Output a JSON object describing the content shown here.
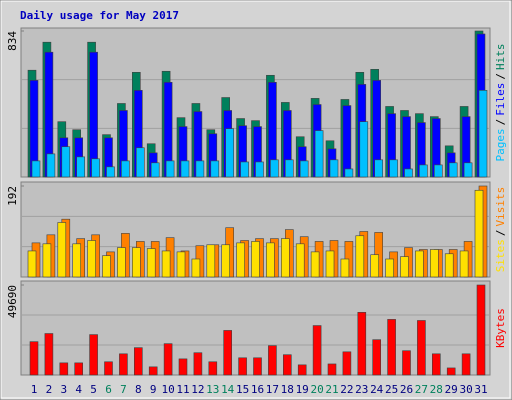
{
  "chart_data": [
    {
      "type": "bar",
      "title": "Daily usage for May 2017",
      "ylim": [
        0,
        834
      ],
      "yticks": [
        834
      ],
      "legend_separator": "/",
      "series": [
        {
          "name": "Hits",
          "color": "#00805c",
          "values": [
            610,
            770,
            316,
            270,
            770,
            242,
            420,
            598,
            190,
            604,
            339,
            420,
            270,
            454,
            334,
            322,
            581,
            426,
            230,
            449,
            207,
            443,
            598,
            615,
            403,
            380,
            362,
            345,
            178,
            403,
            834
          ]
        },
        {
          "name": "Files",
          "color": "#0000ff",
          "values": [
            552,
            713,
            224,
            224,
            713,
            224,
            380,
            495,
            138,
            541,
            288,
            374,
            247,
            380,
            293,
            288,
            541,
            380,
            173,
            414,
            161,
            408,
            529,
            552,
            362,
            345,
            311,
            334,
            138,
            345,
            817
          ]
        },
        {
          "name": "Pages",
          "color": "#00c0ff",
          "values": [
            92,
            132,
            173,
            115,
            104,
            58,
            92,
            167,
            81,
            92,
            92,
            92,
            92,
            276,
            86,
            86,
            98,
            98,
            92,
            265,
            98,
            46,
            316,
            98,
            98,
            46,
            69,
            69,
            81,
            81,
            495
          ]
        }
      ]
    },
    {
      "type": "bar",
      "ylim": [
        0,
        192
      ],
      "yticks": [
        192
      ],
      "legend_separator": "/",
      "series": [
        {
          "name": "Visits",
          "color": "#ff8000",
          "values": [
            72,
            89,
            122,
            81,
            89,
            53,
            92,
            75,
            75,
            83,
            55,
            66,
            68,
            104,
            77,
            81,
            81,
            100,
            85,
            75,
            77,
            75,
            96,
            94,
            53,
            62,
            58,
            58,
            58,
            75,
            192
          ]
        },
        {
          "name": "Sites",
          "color": "#ffe000",
          "values": [
            55,
            70,
            115,
            70,
            77,
            45,
            62,
            62,
            60,
            55,
            53,
            38,
            68,
            68,
            72,
            75,
            72,
            81,
            70,
            53,
            55,
            38,
            87,
            47,
            38,
            43,
            55,
            58,
            49,
            55,
            183
          ]
        }
      ]
    },
    {
      "type": "bar",
      "ylim": [
        0,
        49690
      ],
      "yticks": [
        49690
      ],
      "categories": [
        "1",
        "2",
        "3",
        "4",
        "5",
        "6",
        "7",
        "8",
        "9",
        "10",
        "11",
        "12",
        "13",
        "14",
        "15",
        "16",
        "17",
        "18",
        "19",
        "20",
        "21",
        "22",
        "23",
        "24",
        "25",
        "26",
        "27",
        "28",
        "29",
        "30",
        "31"
      ],
      "category_colors": [
        "#000080",
        "#000080",
        "#000080",
        "#000080",
        "#000080",
        "#00805c",
        "#00805c",
        "#000080",
        "#000080",
        "#000080",
        "#000080",
        "#000080",
        "#00805c",
        "#00805c",
        "#000080",
        "#000080",
        "#000080",
        "#000080",
        "#000080",
        "#00805c",
        "#00805c",
        "#000080",
        "#000080",
        "#000080",
        "#000080",
        "#000080",
        "#00805c",
        "#00805c",
        "#000080",
        "#000080",
        "#000080"
      ],
      "series": [
        {
          "name": "KBytes",
          "color": "#ff0000",
          "values": [
            18400,
            22900,
            6700,
            6700,
            22300,
            7300,
            11700,
            15100,
            4500,
            17300,
            8900,
            12300,
            7300,
            24600,
            9500,
            9500,
            16200,
            11200,
            5600,
            27300,
            6100,
            12800,
            34600,
            19500,
            30700,
            13400,
            30100,
            11700,
            3900,
            11700,
            49690
          ]
        }
      ]
    }
  ]
}
